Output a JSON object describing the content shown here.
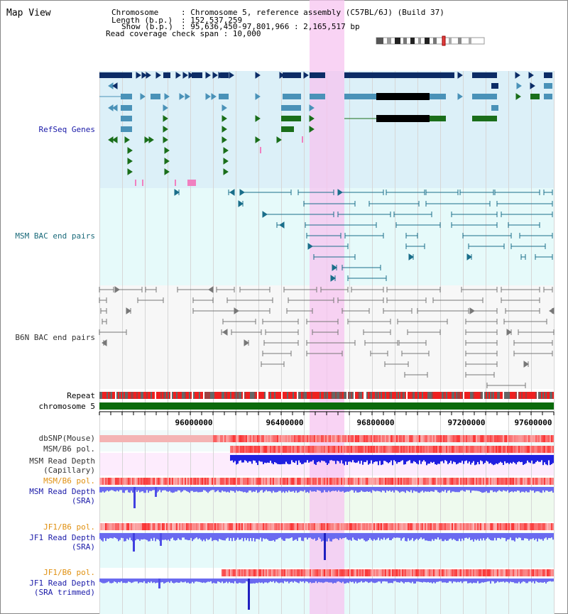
{
  "view_title": "Map View",
  "info": {
    "chromosome_key": "Chromosome",
    "chromosome_val": ": Chromosome 5, reference assembly (C57BL/6J) (Build 37)",
    "length_key": "Length (b.p.)",
    "length_val": ": 152,537,259",
    "show_key": "Show (b.p.)",
    "show_val": ": 95,636,450-97,801,966 : 2,165,517 bp",
    "coverage": "Read coverage check span : 10,000"
  },
  "tracks": {
    "refseq": "RefSeq Genes",
    "msm_bac": "MSM BAC end pairs",
    "b6n_bac": "B6N BAC end pairs",
    "repeat": "Repeat",
    "chromosome": "chromosome 5",
    "dbsnp": "dbSNP(Mouse)",
    "msm_b6_pol_1": "MSM/B6 pol.",
    "msm_depth_cap_1": "MSM Read Depth",
    "msm_depth_cap_2": "(Capillary)",
    "msm_b6_pol_2": "MSM/B6 pol.",
    "msm_depth_sra_1": "MSM Read Depth",
    "msm_depth_sra_2": "(SRA)",
    "jf1_b6_pol_1": "JF1/B6 pol.",
    "jf1_depth_sra_1": "JF1 Read Depth",
    "jf1_depth_sra_2": "(SRA)",
    "jf1_b6_pol_2": "JF1/B6 pol.",
    "jf1_depth_trim_1": "JF1 Read Depth",
    "jf1_depth_trim_2": "(SRA trimmed)"
  },
  "ruler": {
    "ticks": [
      "96000000",
      "96400000",
      "96800000",
      "97200000",
      "97600000"
    ]
  },
  "colors": {
    "refseq_bg": "#dcf0f8",
    "bac_bg": "#e6fafa",
    "highlight": "#f7c4f0",
    "gene_dark": "#0c2c66",
    "gene_mid": "#4a92b8",
    "gene_green": "#1a6e1a",
    "bac_line": "#1a6e8a",
    "b6n_line": "#777777",
    "chrom": "#0b6b0b",
    "depth": "#6a6af0",
    "depth_dark": "#2020d0",
    "label_blue": "#1a1aa8",
    "label_teal": "#1a6a7a",
    "label_orange": "#e09010",
    "label_gray": "#333333"
  }
}
